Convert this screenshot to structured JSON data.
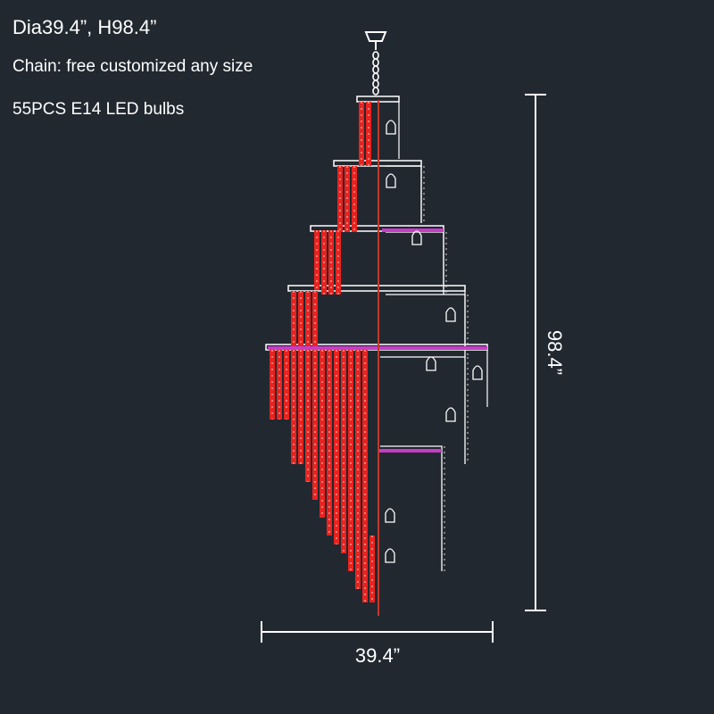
{
  "specs": {
    "title": "Dia39.4”, H98.4”",
    "chain": "Chain: free customized any size",
    "bulbs": "55PCS E14 LED bulbs"
  },
  "dimensions": {
    "width_label": "39.4”",
    "height_label": "98.4”"
  },
  "colors": {
    "background": "#222830",
    "crystal": "#e8231f",
    "frame": "#ffffff",
    "accent": "#c83cc8"
  }
}
